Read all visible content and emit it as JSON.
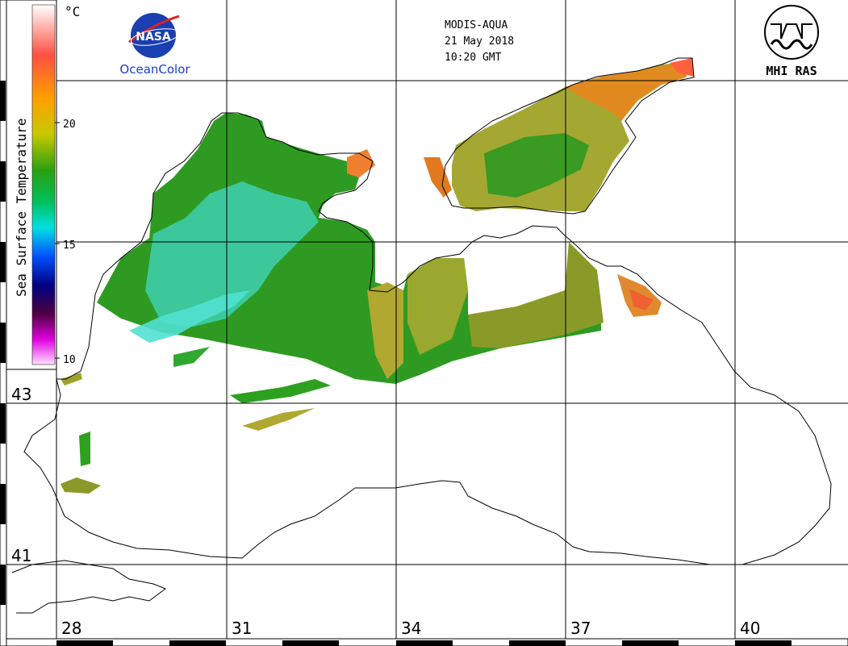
{
  "header": {
    "satellite": "MODIS-AQUA",
    "date": "21 May 2018",
    "time": "10:20 GMT"
  },
  "logos": {
    "nasa_text": "NASA",
    "oceancolor": "OceanColor",
    "mhi": "MHI RAS"
  },
  "colorbar": {
    "title": "Sea Surface Temperature",
    "unit": "°C",
    "ticks": [
      "20",
      "15",
      "10"
    ],
    "colors": [
      "#ffffff",
      "#ff6a4a",
      "#ffb000",
      "#d7d200",
      "#7aa800",
      "#10b010",
      "#00d8d8",
      "#0060ff",
      "#0000c0",
      "#200030",
      "#d000d0",
      "#ffffff"
    ]
  },
  "grid": {
    "latitudes": [
      "43",
      "41"
    ],
    "longitudes": [
      "28",
      "31",
      "34",
      "37",
      "40"
    ]
  },
  "legend_colors": {
    "land": "#ffffff",
    "coast": "#000000",
    "warm": "#ff6a30",
    "mid": "#8fa020",
    "cool": "#20c020",
    "cold": "#40e0e0"
  }
}
